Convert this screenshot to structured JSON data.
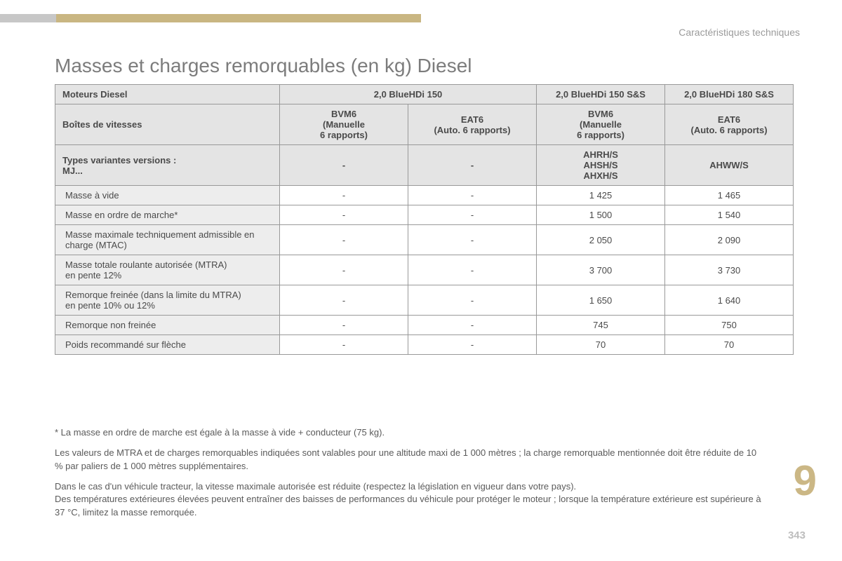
{
  "header": {
    "category": "Caractéristiques techniques",
    "title": "Masses et charges remorquables (en kg) Diesel"
  },
  "table": {
    "type": "table",
    "background_header": "#e4e4e4",
    "background_rowlabel": "#ededed",
    "border_color": "#999999",
    "text_color": "#4a4a4a",
    "fontsize": 13,
    "row1_label": "Moteurs Diesel",
    "row1_cols": [
      "2,0 BlueHDi 150",
      "2,0 BlueHDi 150 S&S",
      "2,0 BlueHDi 180 S&S"
    ],
    "row2_label": "Boîtes de vitesses",
    "row2_cols": [
      "BVM6\n(Manuelle\n6 rapports)",
      "EAT6\n(Auto. 6 rapports)",
      "BVM6\n(Manuelle\n6 rapports)",
      "EAT6\n(Auto. 6 rapports)"
    ],
    "row3_label": "Types variantes versions :\nMJ...",
    "row3_cols": [
      "-",
      "-",
      "AHRH/S\nAHSH/S\nAHXH/S",
      "AHWW/S"
    ],
    "data_rows": [
      {
        "label": "Masse à vide",
        "vals": [
          "-",
          "-",
          "1 425",
          "1 465"
        ]
      },
      {
        "label": "Masse en ordre de marche*",
        "vals": [
          "-",
          "-",
          "1 500",
          "1 540"
        ]
      },
      {
        "label": "Masse maximale techniquement admissible en charge (MTAC)",
        "vals": [
          "-",
          "-",
          "2 050",
          "2 090"
        ]
      },
      {
        "label": "Masse totale roulante autorisée (MTRA)\nen pente 12%",
        "vals": [
          "-",
          "-",
          "3 700",
          "3 730"
        ]
      },
      {
        "label": "Remorque freinée (dans la limite du MTRA)\nen pente 10% ou 12%",
        "vals": [
          "-",
          "-",
          "1 650",
          "1 640"
        ]
      },
      {
        "label": "Remorque non freinée",
        "vals": [
          "-",
          "-",
          "745",
          "750"
        ]
      },
      {
        "label": "Poids recommandé sur flèche",
        "vals": [
          "-",
          "-",
          "70",
          "70"
        ]
      }
    ]
  },
  "footnotes": {
    "note1": "* La masse en ordre de marche est égale à la masse à vide + conducteur (75 kg).",
    "note2": "Les valeurs de MTRA et de charges remorquables indiquées sont valables pour une altitude maxi de 1 000 mètres ; la charge remorquable mentionnée doit être réduite de 10 % par paliers de 1 000 mètres supplémentaires.",
    "note3": "Dans le cas d'un véhicule tracteur, la vitesse maximale autorisée est réduite (respectez la législation en vigueur dans votre pays).",
    "note4": "Des températures extérieures élevées peuvent entraîner des baisses de performances du véhicule pour protéger le moteur ; lorsque la température extérieure est supérieure à 37 °C, limitez la masse remorquée."
  },
  "section_number": "9",
  "page_number": "343",
  "colors": {
    "accent_bar": "#c9b682",
    "grey_bar": "#c7c7c7",
    "title_color": "#7c7c7c",
    "header_text": "#9b9b9b",
    "section_num_color": "#cbb785",
    "page_num_color": "#bdbdbd"
  }
}
